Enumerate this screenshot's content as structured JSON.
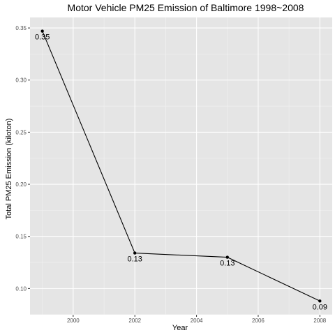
{
  "chart_data": {
    "type": "line",
    "title": "Motor Vehicle PM25 Emission of Baltimore 1998~2008",
    "xlabel": "Year",
    "ylabel": "Total PM25 Emission (kiloton)",
    "x": [
      1999,
      2002,
      2005,
      2008
    ],
    "values": [
      0.347,
      0.134,
      0.13,
      0.088
    ],
    "data_labels": [
      "0.35",
      "0.13",
      "0.13",
      "0.09"
    ],
    "xlim": [
      1998.6,
      2008.4
    ],
    "ylim": [
      0.0748,
      0.3601
    ],
    "x_ticks": [
      2000,
      2002,
      2004,
      2006,
      2008
    ],
    "x_tick_labels": [
      "2000",
      "2002",
      "2004",
      "2006",
      "2008"
    ],
    "y_ticks": [
      0.1,
      0.15,
      0.2,
      0.25,
      0.3,
      0.35
    ],
    "y_tick_labels": [
      "0.10",
      "0.15",
      "0.20",
      "0.25",
      "0.30",
      "0.35"
    ],
    "grid": true,
    "colors": {
      "panel": "#e5e5e5",
      "grid_major": "#ffffff",
      "grid_minor": "#f2f2f2",
      "line": "#000000",
      "tick_text": "#4d4d4d"
    }
  }
}
